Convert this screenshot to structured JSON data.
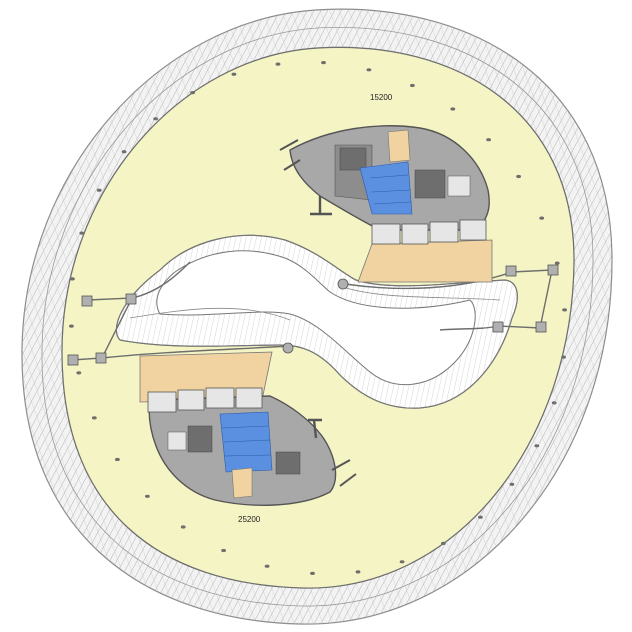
{
  "dimension_labels": {
    "top": "15200",
    "bottom": "25200"
  },
  "colors": {
    "background": "#ffffff",
    "floor_slab": "#f4f4c4",
    "facade_ring_fill": "#f2f2f2",
    "facade_line": "#9a9a9a",
    "core_grey": "#9e9e9e",
    "core_dark": "#6e6e6e",
    "wet_area_blue": "#5b8fe0",
    "tan_zone": "#f1d3a1",
    "room_light": "#e6e6e6",
    "column_dot": "#666666",
    "outline": "#555555"
  }
}
